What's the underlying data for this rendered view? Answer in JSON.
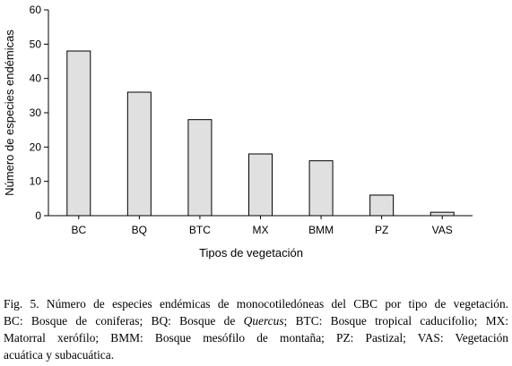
{
  "chart_data": {
    "type": "bar",
    "title": "",
    "xlabel": "Tipos de vegetación",
    "ylabel": "Número de especies endémicas",
    "categories": [
      "BC",
      "BQ",
      "BTC",
      "MX",
      "BMM",
      "PZ",
      "VAS"
    ],
    "values": [
      48,
      36,
      28,
      18,
      16,
      6,
      1
    ],
    "ylim": [
      0,
      60
    ],
    "yticks": [
      "0",
      "10",
      "20",
      "30",
      "40",
      "50",
      "60"
    ],
    "grid": false,
    "legend": "none",
    "bar_color": "#e0e0e0",
    "bar_stroke": "#000000"
  },
  "caption": {
    "line1": "Fig. 5. Número de especies endémicas de monocotiledóneas del CBC por tipo de vegetación.",
    "line2_a": "BC: Bosque de coniferas; BQ: Bosque de ",
    "line2_italic": "Quercus",
    "line2_b": "; BTC: Bosque tropical caducifolio; MX:",
    "line3": "Matorral xerófilo; BMM: Bosque mesófilo de montaña; PZ: Pastizal; VAS: Vegetación",
    "line4": "acuática y subacuática."
  }
}
